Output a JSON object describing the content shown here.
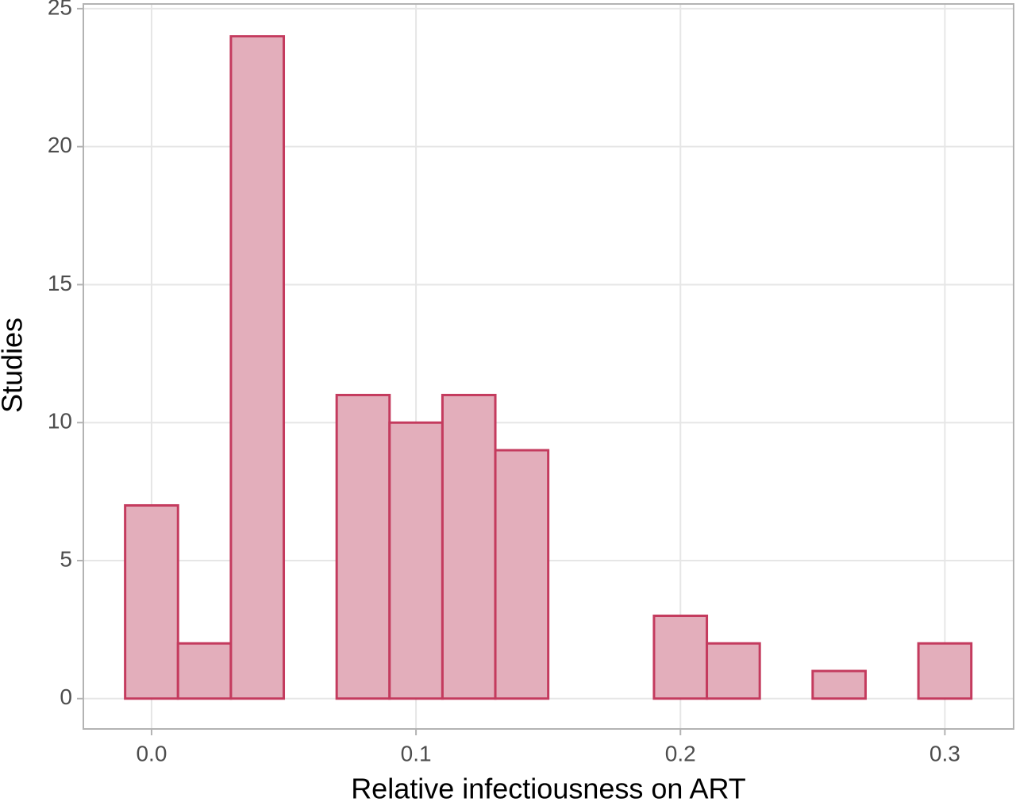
{
  "chart_data": {
    "type": "histogram",
    "x_label": "Relative infectiousness on ART",
    "y_label": "Studies",
    "bins": [
      -0.01,
      0.01,
      0.03,
      0.05,
      0.07,
      0.09,
      0.11,
      0.13,
      0.15,
      0.17,
      0.19,
      0.21,
      0.23,
      0.25,
      0.27,
      0.29,
      0.31
    ],
    "values": [
      7,
      2,
      24,
      0,
      11,
      10,
      11,
      9,
      0,
      0,
      3,
      2,
      0,
      1,
      0,
      2
    ],
    "color": "#e3aebb",
    "edge_color": "#c43b5e",
    "xlim": [
      -0.0258,
      0.326
    ],
    "ylim": [
      -1.1,
      25.17
    ],
    "xticks": [
      {
        "value": 0,
        "label": "0.0"
      },
      0.1,
      0.2,
      0.3
    ],
    "yticks": [
      0,
      5,
      10,
      15,
      20,
      25
    ],
    "grid": true
  }
}
